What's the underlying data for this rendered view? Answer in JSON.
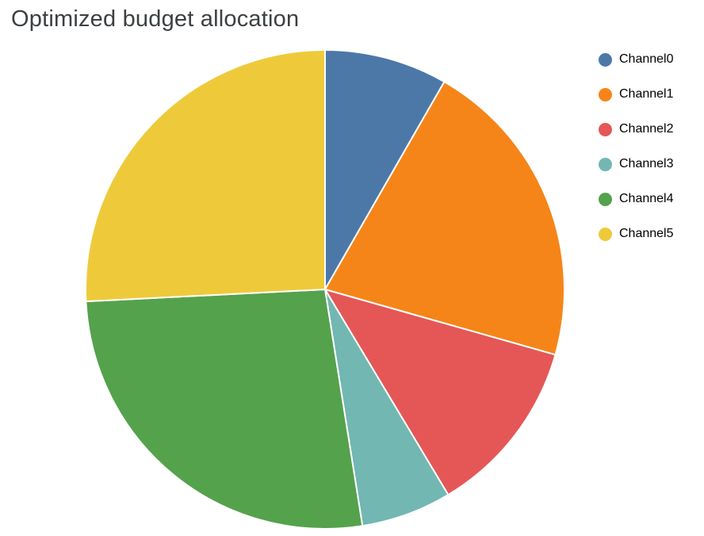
{
  "title": "Optimized budget allocation",
  "chart_data": {
    "type": "pie",
    "title": "Optimized budget allocation",
    "categories": [
      "Channel0",
      "Channel1",
      "Channel2",
      "Channel3",
      "Channel4",
      "Channel5"
    ],
    "values": [
      8.3,
      21.1,
      12.0,
      6.1,
      26.7,
      25.8
    ],
    "unit": "percent",
    "colors": [
      "#4c78a8",
      "#f58518",
      "#e45756",
      "#72b7b2",
      "#54a24b",
      "#eeca3b"
    ],
    "start_angle_deg": 0,
    "direction": "clockwise",
    "slice_gap_color": "#ffffff",
    "legend_position": "right",
    "legend_entries": [
      "Channel0",
      "Channel1",
      "Channel2",
      "Channel3",
      "Channel4",
      "Channel5"
    ],
    "title_color": "#3c4043"
  }
}
